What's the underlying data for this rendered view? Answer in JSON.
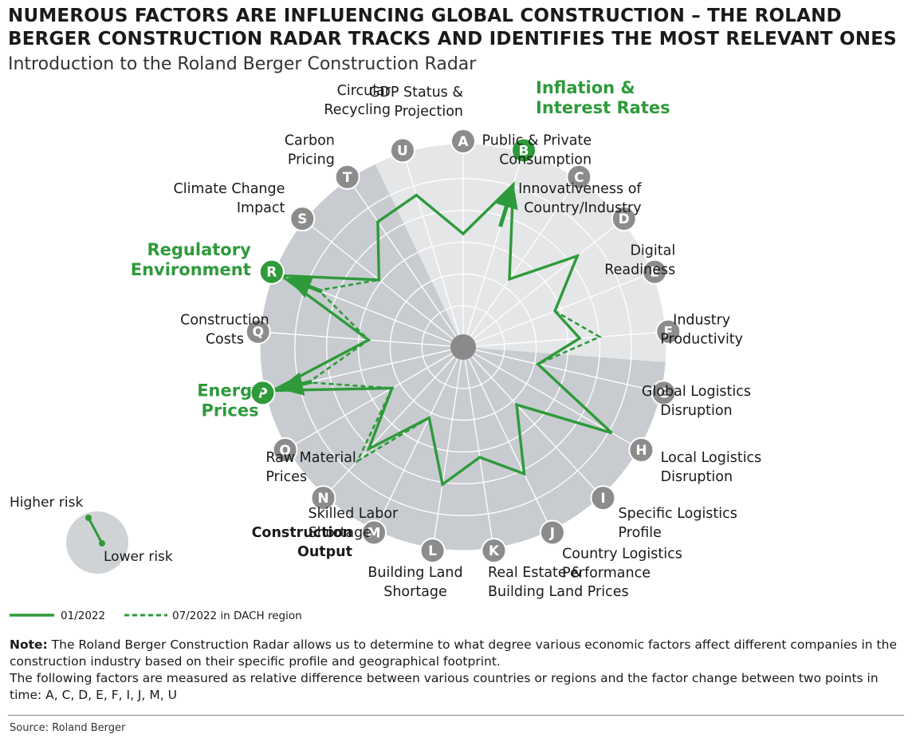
{
  "header": {
    "title": "NUMEROUS FACTORS ARE INFLUENCING GLOBAL CONSTRUCTION – THE ROLAND BERGER CONSTRUCTION RADAR TRACKS AND IDENTIFIES THE MOST RELEVANT ONES",
    "subtitle": "Introduction to the Roland Berger Construction Radar"
  },
  "colors": {
    "accent": "#2e9a3a",
    "marker_grey": "#8c8c8c",
    "ring_dark": "#c8ccd0",
    "ring_light": "#e4e6e8"
  },
  "chart_data": {
    "type": "radar",
    "scale": "outer ring = higher risk, center = lower risk",
    "factors": [
      {
        "id": "A",
        "label": [
          "GDP Status &",
          "Projection"
        ],
        "highlight": false
      },
      {
        "id": "B",
        "label": [
          "Inflation &",
          "Interest Rates"
        ],
        "highlight": true
      },
      {
        "id": "C",
        "label": [
          "Public & Private",
          "Consumption"
        ],
        "highlight": false
      },
      {
        "id": "D",
        "label": [
          "Innovativeness of",
          "Country/Industry"
        ],
        "highlight": false
      },
      {
        "id": "E",
        "label": [
          "Digital",
          "Readiness"
        ],
        "highlight": false
      },
      {
        "id": "F",
        "label": [
          "Industry",
          "Productivity"
        ],
        "highlight": false
      },
      {
        "id": "G",
        "label": [
          "Global Logistics",
          "Disruption"
        ],
        "highlight": false
      },
      {
        "id": "H",
        "label": [
          "Local Logistics",
          "Disruption"
        ],
        "highlight": false
      },
      {
        "id": "I",
        "label": [
          "Specific Logistics",
          "Profile"
        ],
        "highlight": false
      },
      {
        "id": "J",
        "label": [
          "Country Logistics",
          "Performance"
        ],
        "highlight": false
      },
      {
        "id": "K",
        "label": [
          "Real Estate &",
          "Building Land Prices"
        ],
        "highlight": false
      },
      {
        "id": "L",
        "label": [
          "Building Land",
          "Shortage"
        ],
        "highlight": false
      },
      {
        "id": "M",
        "label": [
          "Construction",
          "Output"
        ],
        "highlight": false,
        "bold": true
      },
      {
        "id": "N",
        "label": [
          "Skilled Labor",
          "Shortage"
        ],
        "highlight": false
      },
      {
        "id": "O",
        "label": [
          "Raw Material",
          "Prices"
        ],
        "highlight": false
      },
      {
        "id": "P",
        "label": [
          "Energy",
          "Prices"
        ],
        "highlight": true
      },
      {
        "id": "Q",
        "label": [
          "Construction",
          "Costs"
        ],
        "highlight": false
      },
      {
        "id": "R",
        "label": [
          "Regulatory",
          "Environment"
        ],
        "highlight": true
      },
      {
        "id": "S",
        "label": [
          "Climate Change",
          "Impact"
        ],
        "highlight": false
      },
      {
        "id": "T",
        "label": [
          "Carbon",
          "Pricing"
        ],
        "highlight": false
      },
      {
        "id": "U",
        "label": [
          "Circular",
          "Recycling"
        ],
        "highlight": false
      }
    ],
    "series": [
      {
        "name": "01/2022",
        "style": "solid",
        "points": [
          [
            0,
            0.55
          ],
          [
            1,
            0.86
          ],
          [
            2,
            0.38
          ],
          [
            3,
            0.73
          ],
          [
            4,
            0.47
          ],
          [
            5,
            0.57
          ],
          [
            6,
            0.35
          ],
          [
            7,
            0.87
          ],
          [
            8,
            0.36
          ],
          [
            9,
            0.7
          ],
          [
            10,
            0.54
          ],
          [
            11,
            0.69
          ],
          [
            12,
            0.36
          ],
          [
            13,
            0.69
          ],
          [
            14,
            0.38
          ],
          [
            15,
            1.0
          ],
          [
            16,
            0.45
          ],
          [
            17,
            1.0
          ],
          [
            18,
            0.52
          ],
          [
            19,
            0.76
          ],
          [
            20,
            0.8
          ]
        ]
      },
      {
        "name": "07/2022 in DACH region",
        "style": "dashed",
        "points": [
          [
            0,
            0.55
          ],
          [
            1,
            0.86
          ],
          [
            2,
            0.38
          ],
          [
            3,
            0.73
          ],
          [
            4,
            0.47
          ],
          [
            5,
            0.68
          ],
          [
            6,
            0.35
          ],
          [
            7,
            0.87
          ],
          [
            8,
            0.36
          ],
          [
            9,
            0.7
          ],
          [
            10,
            0.54
          ],
          [
            11,
            0.69
          ],
          [
            12,
            0.36
          ],
          [
            13,
            0.78
          ],
          [
            14,
            0.38
          ],
          [
            15,
            0.8
          ],
          [
            16,
            0.45
          ],
          [
            17,
            0.78
          ],
          [
            18,
            0.52
          ],
          [
            19,
            0.76
          ],
          [
            20,
            0.8
          ]
        ]
      }
    ],
    "arrows": [
      "B",
      "P",
      "R"
    ],
    "rings": 6,
    "legend_placement": "bottom-left",
    "scale_legend": {
      "high": "Higher risk",
      "low": "Lower risk"
    }
  },
  "legend": {
    "solid_label": "01/2022",
    "dashed_label": "07/2022 in DACH region"
  },
  "note": {
    "lead": "Note:",
    "text1": " The Roland Berger Construction Radar allows us to determine to what degree various economic factors affect different companies in the construction industry based on their specific profile and geographical footprint.",
    "text2": "The following factors are measured as relative difference between various countries or regions and the factor change between two points in time: A, C, D, E, F, I, J, M, U"
  },
  "source": "Source: Roland Berger"
}
